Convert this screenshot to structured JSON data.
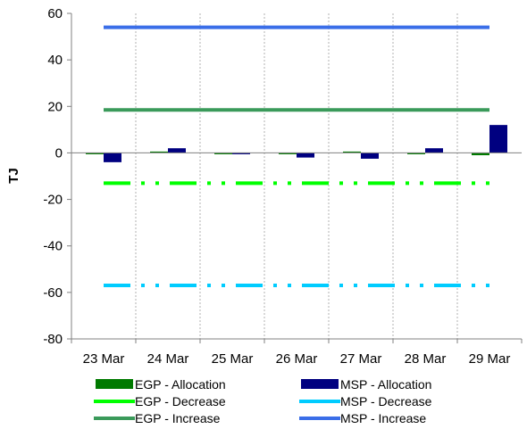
{
  "chart_data": {
    "type": "bar",
    "categories": [
      "23 Mar",
      "24 Mar",
      "25 Mar",
      "26 Mar",
      "27 Mar",
      "28 Mar",
      "29 Mar"
    ],
    "ylabel": "TJ",
    "xlabel": "",
    "title": "",
    "ylim": [
      -80,
      60
    ],
    "yticks": [
      60,
      40,
      20,
      0,
      -20,
      -40,
      -60,
      -80
    ],
    "grid": "vertical-dashed",
    "legend_position": "bottom",
    "series": [
      {
        "name": "EGP - Allocation",
        "kind": "bar",
        "color": "#007a00",
        "values": [
          -0.5,
          0,
          -0.5,
          -0.5,
          0,
          -0.5,
          -1
        ]
      },
      {
        "name": "MSP - Allocation",
        "kind": "bar",
        "color": "#000080",
        "values": [
          -4,
          2,
          -0.5,
          -2,
          -2.5,
          2,
          12
        ]
      },
      {
        "name": "EGP - Decrease",
        "kind": "line",
        "style": "dash-dot",
        "color": "#00ff00",
        "values": [
          -13,
          -13,
          -13,
          -13,
          -13,
          -13,
          -13
        ]
      },
      {
        "name": "MSP - Decrease",
        "kind": "line",
        "style": "dash-dot",
        "color": "#00ccff",
        "values": [
          -57,
          -57,
          -57,
          -57,
          -57,
          -57,
          -57
        ]
      },
      {
        "name": "EGP - Increase",
        "kind": "line",
        "style": "solid",
        "color": "#3a9a5a",
        "values": [
          18.5,
          18.5,
          18.5,
          18.5,
          18.5,
          18.5,
          18.5
        ]
      },
      {
        "name": "MSP - Increase",
        "kind": "line",
        "style": "solid",
        "color": "#3a6ee8",
        "values": [
          54,
          54,
          54,
          54,
          54,
          54,
          54
        ]
      }
    ]
  }
}
